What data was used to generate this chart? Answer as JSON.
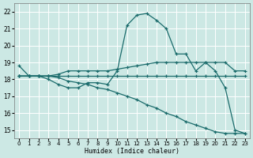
{
  "xlabel": "Humidex (Indice chaleur)",
  "bg_color": "#cce8e4",
  "grid_color": "#ffffff",
  "line_color": "#1a6b6b",
  "xlim": [
    -0.5,
    23.5
  ],
  "ylim": [
    14.5,
    22.5
  ],
  "xticks": [
    0,
    1,
    2,
    3,
    4,
    5,
    6,
    7,
    8,
    9,
    10,
    11,
    12,
    13,
    14,
    15,
    16,
    17,
    18,
    19,
    20,
    21,
    22,
    23
  ],
  "yticks": [
    15,
    16,
    17,
    18,
    19,
    20,
    21,
    22
  ],
  "series": [
    {
      "x": [
        0,
        1,
        2,
        3,
        4,
        5,
        6,
        7,
        8,
        9,
        10,
        11,
        12,
        13,
        14,
        15,
        16,
        17,
        18,
        19,
        20,
        21,
        22,
        23
      ],
      "y": [
        18.8,
        18.2,
        18.2,
        18.0,
        17.7,
        17.5,
        17.5,
        17.8,
        17.8,
        17.7,
        18.5,
        21.2,
        21.8,
        21.9,
        21.5,
        21.0,
        19.5,
        19.5,
        18.5,
        19.0,
        18.5,
        17.5,
        15.0,
        14.8
      ]
    },
    {
      "x": [
        0,
        1,
        2,
        3,
        4,
        5,
        6,
        7,
        8,
        9,
        10,
        11,
        12,
        13,
        14,
        15,
        16,
        17,
        18,
        19,
        20,
        21,
        22,
        23
      ],
      "y": [
        18.2,
        18.2,
        18.2,
        18.2,
        18.3,
        18.5,
        18.5,
        18.5,
        18.5,
        18.5,
        18.6,
        18.7,
        18.8,
        18.9,
        19.0,
        19.0,
        19.0,
        19.0,
        19.0,
        19.0,
        19.0,
        19.0,
        18.5,
        18.5
      ]
    },
    {
      "x": [
        0,
        1,
        2,
        3,
        4,
        5,
        6,
        7,
        8,
        9,
        10,
        11,
        12,
        13,
        14,
        15,
        16,
        17,
        18,
        19,
        20,
        21,
        22,
        23
      ],
      "y": [
        18.2,
        18.2,
        18.2,
        18.2,
        18.2,
        18.2,
        18.2,
        18.2,
        18.2,
        18.2,
        18.2,
        18.2,
        18.2,
        18.2,
        18.2,
        18.2,
        18.2,
        18.2,
        18.2,
        18.2,
        18.2,
        18.2,
        18.2,
        18.2
      ]
    },
    {
      "x": [
        0,
        1,
        2,
        3,
        4,
        5,
        6,
        7,
        8,
        9,
        10,
        11,
        12,
        13,
        14,
        15,
        16,
        17,
        18,
        19,
        20,
        21,
        22,
        23
      ],
      "y": [
        18.2,
        18.2,
        18.2,
        18.2,
        18.1,
        17.9,
        17.8,
        17.7,
        17.5,
        17.4,
        17.2,
        17.0,
        16.8,
        16.5,
        16.3,
        16.0,
        15.8,
        15.5,
        15.3,
        15.1,
        14.9,
        14.8,
        14.8,
        14.8
      ]
    }
  ]
}
